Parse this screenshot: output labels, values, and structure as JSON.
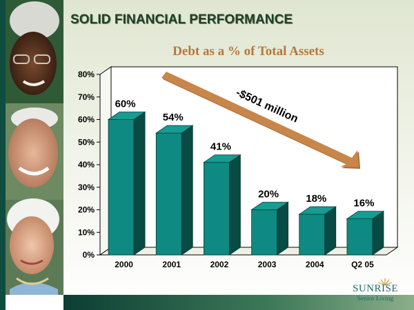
{
  "slide": {
    "title": "SOLID FINANCIAL PERFORMANCE",
    "logo": {
      "name": "SUNRISE",
      "tagline": "Senior Living"
    }
  },
  "arrow_label": "-$501 million",
  "colors": {
    "bar": "#0e8a82",
    "bar_side": "#084a44",
    "bar_top": "#159c93",
    "arrow": "#c8864a",
    "title_text": "#b8763a"
  },
  "chart_data": {
    "type": "bar",
    "title": "Debt as a % of Total Assets",
    "xlabel": "",
    "ylabel": "",
    "categories": [
      "2000",
      "2001",
      "2002",
      "2003",
      "2004",
      "Q2 05"
    ],
    "values": [
      60,
      54,
      41,
      20,
      18,
      16
    ],
    "value_labels": [
      "60%",
      "54%",
      "41%",
      "20%",
      "18%",
      "16%"
    ],
    "yticks": [
      "0%",
      "10%",
      "20%",
      "30%",
      "40%",
      "50%",
      "60%",
      "70%",
      "80%"
    ],
    "ylim": [
      0,
      80
    ],
    "grid": false,
    "legend": "none"
  }
}
